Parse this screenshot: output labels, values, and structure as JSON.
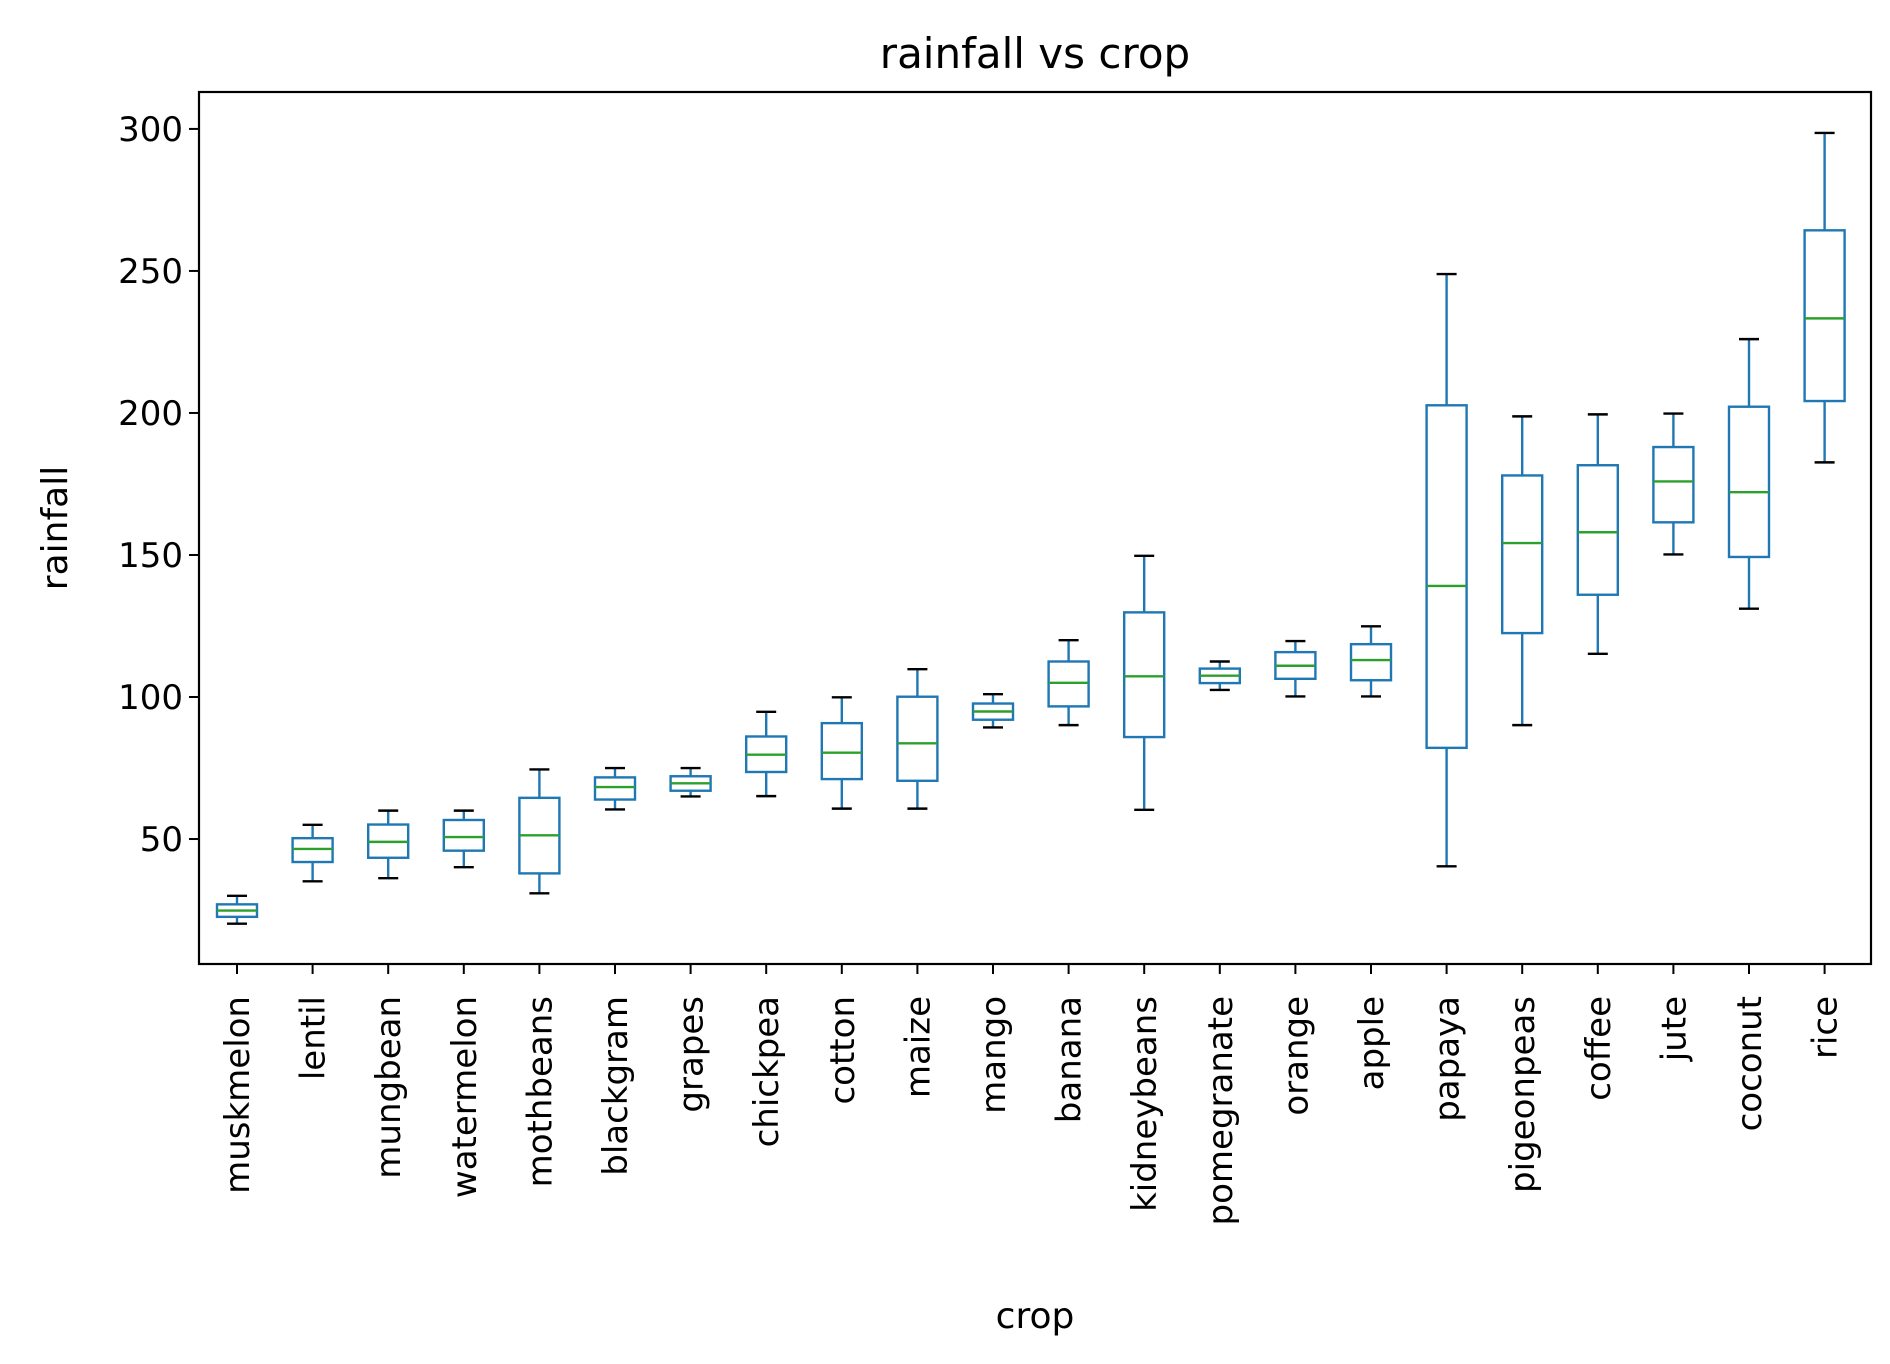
{
  "chart_data": {
    "type": "box",
    "title": "rainfall vs crop",
    "xlabel": "crop",
    "ylabel": "rainfall",
    "ylim": [
      6,
      313
    ],
    "yticks": [
      50,
      100,
      150,
      200,
      250,
      300
    ],
    "grid": false,
    "colors": {
      "box": "#1f77b4",
      "median": "#2ca02c",
      "cap": "#000000"
    },
    "categories": [
      "muskmelon",
      "lentil",
      "mungbean",
      "watermelon",
      "mothbeans",
      "blackgram",
      "grapes",
      "chickpea",
      "cotton",
      "maize",
      "mango",
      "banana",
      "kidneybeans",
      "pomegranate",
      "orange",
      "apple",
      "papaya",
      "pigeonpeas",
      "coffee",
      "jute",
      "coconut",
      "rice"
    ],
    "series": [
      {
        "whisker_low": 20.2,
        "q1": 22.6,
        "median": 24.8,
        "q3": 27.0,
        "whisker_high": 30.0
      },
      {
        "whisker_low": 35.1,
        "q1": 41.9,
        "median": 46.5,
        "q3": 50.3,
        "whisker_high": 55.0
      },
      {
        "whisker_low": 36.2,
        "q1": 43.4,
        "median": 49.0,
        "q3": 55.1,
        "whisker_high": 60.0
      },
      {
        "whisker_low": 40.1,
        "q1": 45.9,
        "median": 50.7,
        "q3": 56.7,
        "whisker_high": 60.0
      },
      {
        "whisker_low": 30.9,
        "q1": 37.9,
        "median": 51.3,
        "q3": 64.5,
        "whisker_high": 74.5
      },
      {
        "whisker_low": 60.4,
        "q1": 63.9,
        "median": 68.3,
        "q3": 71.7,
        "whisker_high": 75.0
      },
      {
        "whisker_low": 65.0,
        "q1": 67.0,
        "median": 69.6,
        "q3": 72.1,
        "whisker_high": 75.0
      },
      {
        "whisker_low": 65.1,
        "q1": 73.6,
        "median": 79.7,
        "q3": 86.1,
        "whisker_high": 94.8
      },
      {
        "whisker_low": 60.7,
        "q1": 71.1,
        "median": 80.4,
        "q3": 90.8,
        "whisker_high": 99.9
      },
      {
        "whisker_low": 60.7,
        "q1": 70.5,
        "median": 83.7,
        "q3": 100.1,
        "whisker_high": 109.8
      },
      {
        "whisker_low": 89.3,
        "q1": 92.0,
        "median": 94.9,
        "q3": 97.7,
        "whisker_high": 101.0
      },
      {
        "whisker_low": 90.1,
        "q1": 96.7,
        "median": 105.0,
        "q3": 112.5,
        "whisker_high": 120.0
      },
      {
        "whisker_low": 60.3,
        "q1": 85.9,
        "median": 107.3,
        "q3": 129.8,
        "whisker_high": 149.7
      },
      {
        "whisker_low": 102.5,
        "q1": 104.9,
        "median": 107.5,
        "q3": 110.0,
        "whisker_high": 112.5
      },
      {
        "whisker_low": 100.2,
        "q1": 106.4,
        "median": 111.0,
        "q3": 115.8,
        "whisker_high": 119.7
      },
      {
        "whisker_low": 100.2,
        "q1": 105.9,
        "median": 113.0,
        "q3": 118.6,
        "whisker_high": 124.9
      },
      {
        "whisker_low": 40.4,
        "q1": 82.1,
        "median": 139.1,
        "q3": 202.7,
        "whisker_high": 248.9
      },
      {
        "whisker_low": 90.1,
        "q1": 122.5,
        "median": 154.2,
        "q3": 178.0,
        "whisker_high": 198.8
      },
      {
        "whisker_low": 115.2,
        "q1": 136.0,
        "median": 158.0,
        "q3": 181.6,
        "whisker_high": 199.5
      },
      {
        "whisker_low": 150.2,
        "q1": 161.5,
        "median": 175.9,
        "q3": 188.0,
        "whisker_high": 199.8
      },
      {
        "whisker_low": 131.1,
        "q1": 149.3,
        "median": 172.1,
        "q3": 202.2,
        "whisker_high": 226.0
      },
      {
        "whisker_low": 182.6,
        "q1": 204.2,
        "median": 233.3,
        "q3": 264.3,
        "whisker_high": 298.6
      }
    ]
  }
}
